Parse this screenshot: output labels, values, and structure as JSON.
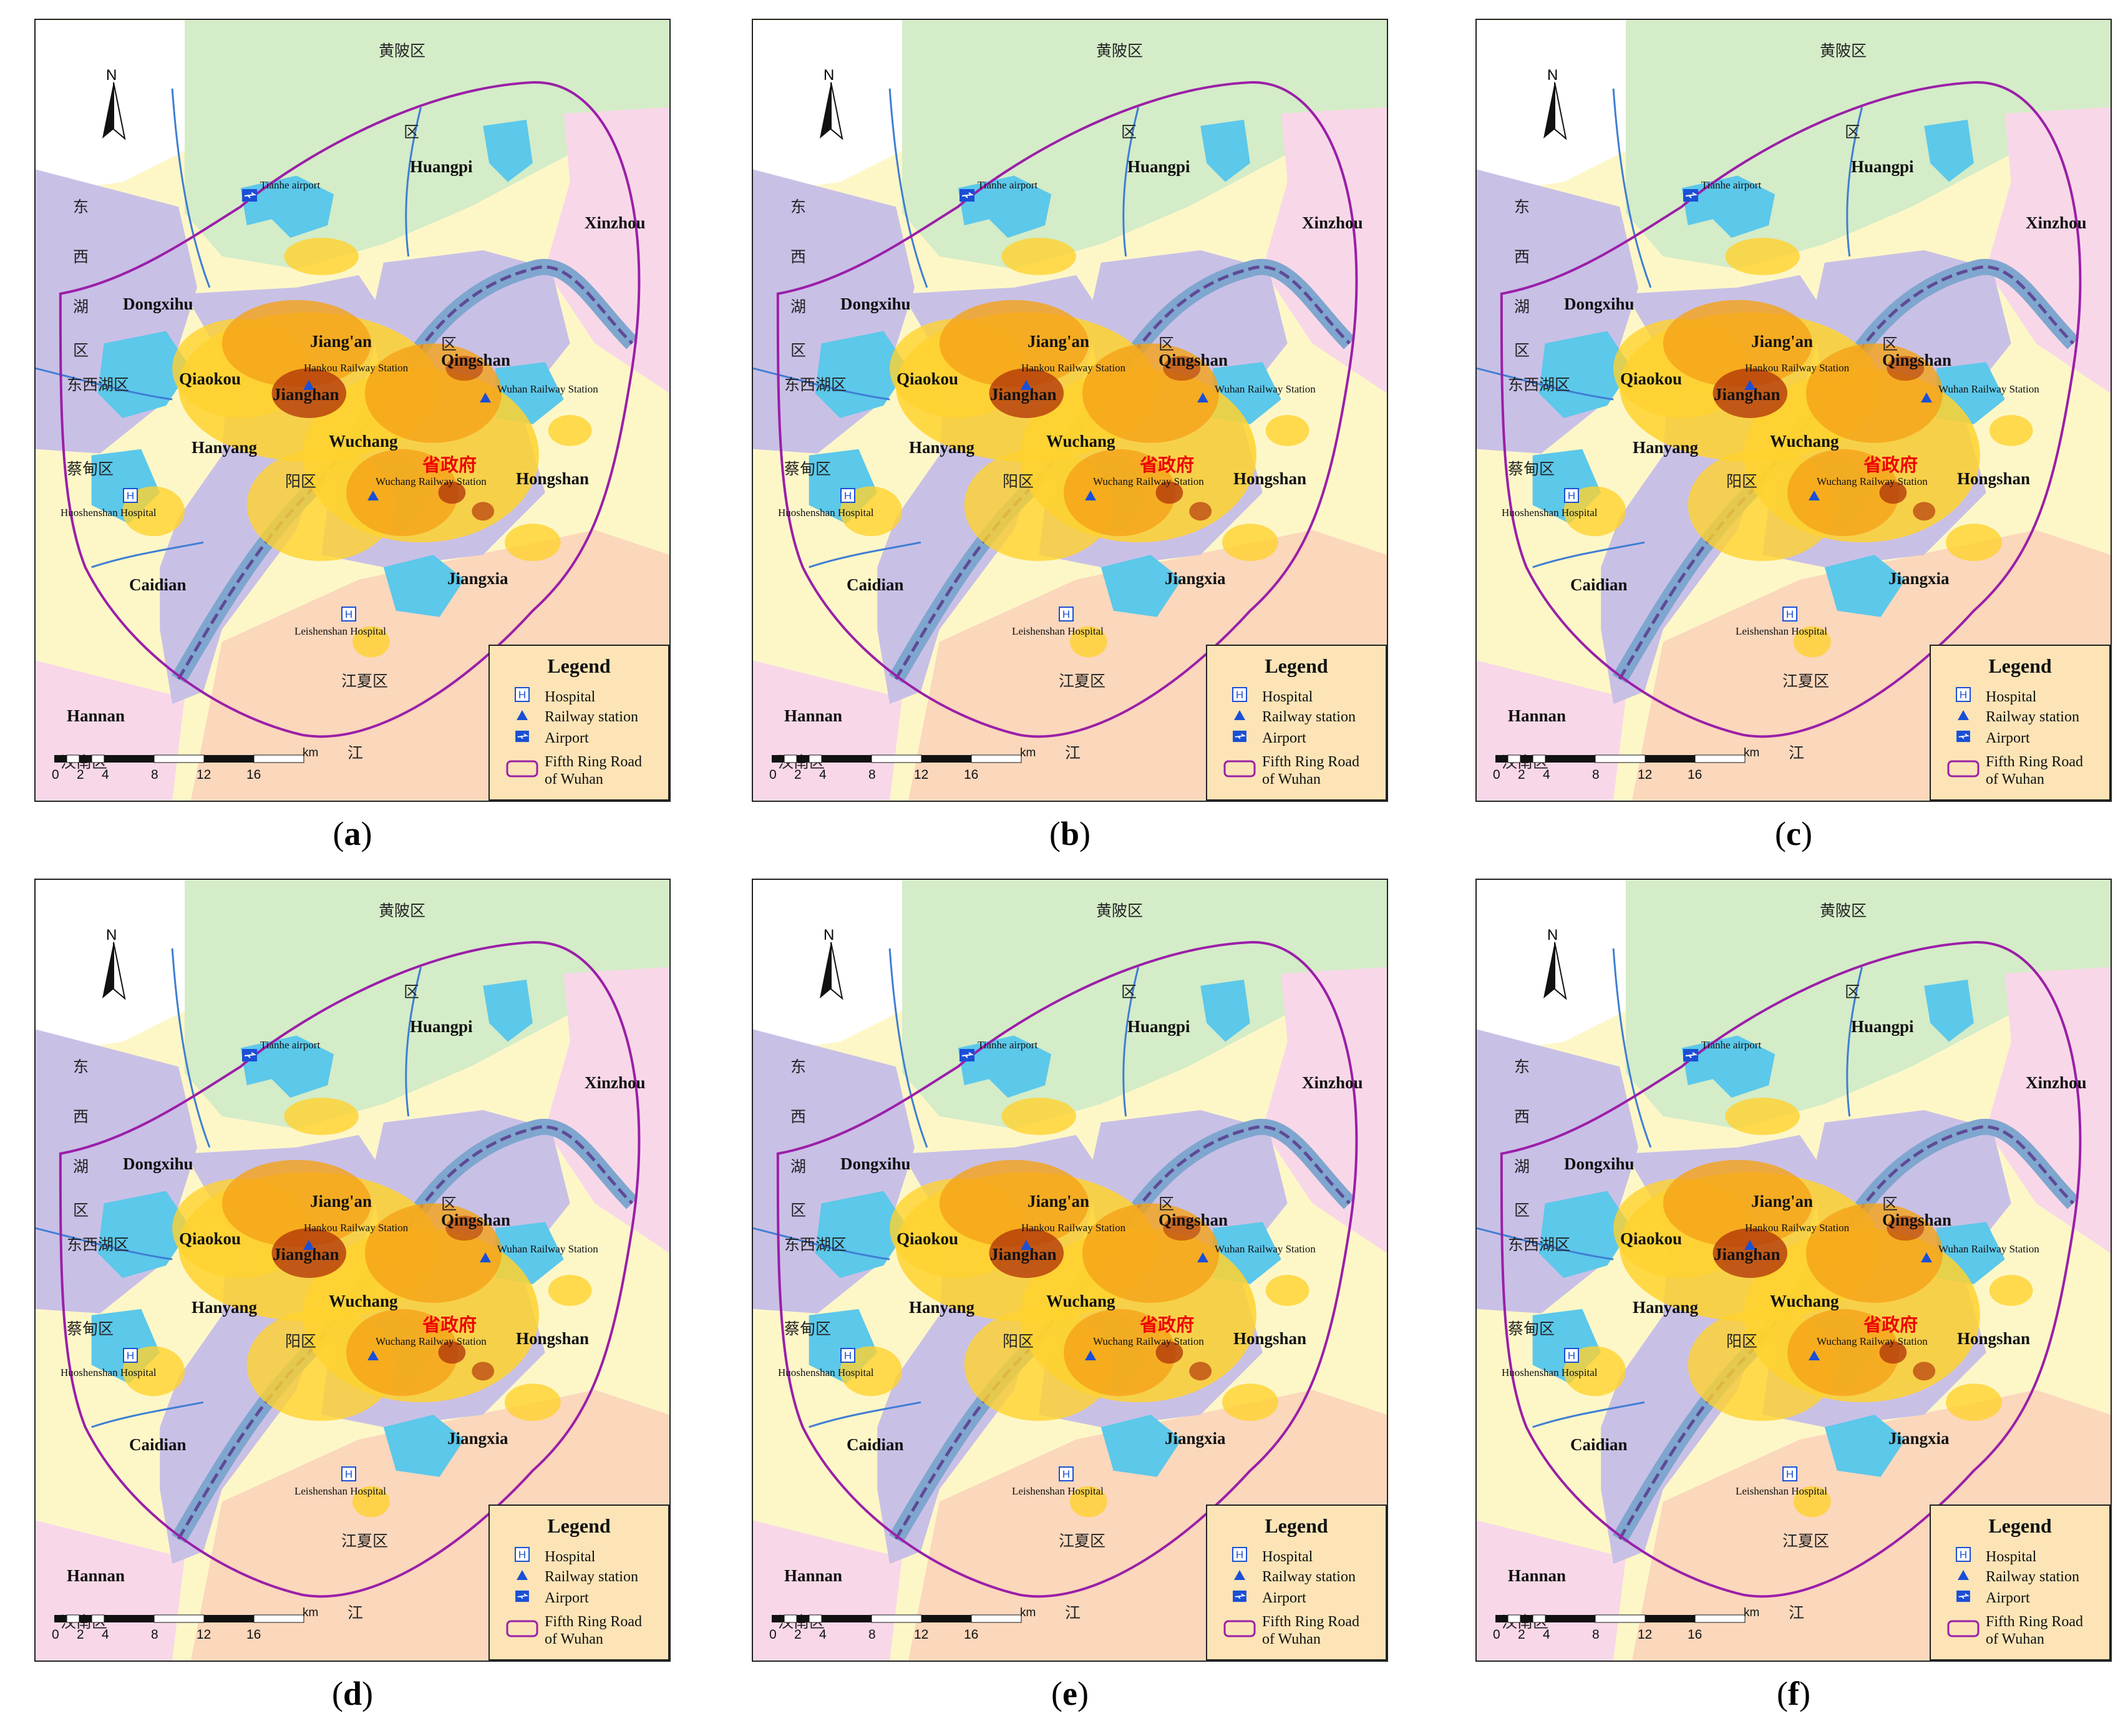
{
  "panels": [
    {
      "label_open": "(",
      "letter": "a",
      "label_close": ")"
    },
    {
      "label_open": "(",
      "letter": "b",
      "label_close": ")"
    },
    {
      "label_open": "(",
      "letter": "c",
      "label_close": ")"
    },
    {
      "label_open": "(",
      "letter": "d",
      "label_close": ")"
    },
    {
      "label_open": "(",
      "letter": "e",
      "label_close": ")"
    },
    {
      "label_open": "(",
      "letter": "f",
      "label_close": ")"
    }
  ],
  "map": {
    "north_label": "N",
    "districts": [
      "Huangpi",
      "Xinzhou",
      "Dongxihu",
      "Jiang'an",
      "Qiaokou",
      "Jianghan",
      "Qingshan",
      "Hanyang",
      "Wuchang",
      "Hongshan",
      "Caidian",
      "Jiangxia",
      "Hannan"
    ],
    "cn_labels": [
      "黄陂区",
      "区",
      "东",
      "西",
      "湖",
      "区",
      "东西湖区",
      "蔡甸区",
      "江夏区",
      "汉南区",
      "江",
      "阳区",
      "区"
    ],
    "cn_red": "省政府",
    "pois": {
      "airport": "Tianhe airport",
      "hankou": "Hankou Railway Station",
      "wuhan_rs": "Wuhan Railway Station",
      "wuchang_rs": "Wuchang Railway Station",
      "huoshenshan": "Huoshenshan Hospital",
      "leishenshan": "Leishenshan Hospital"
    },
    "scale": {
      "unit": "km",
      "ticks": [
        "0",
        "2",
        "4",
        "8",
        "12",
        "16"
      ]
    },
    "legend": {
      "title": "Legend",
      "hospital": "Hospital",
      "railway": "Railway station",
      "airport": "Airport",
      "ring_line1": "Fifth Ring Road",
      "ring_line2": "of Wuhan"
    },
    "colors": {
      "ring_road": "#9b1fa8",
      "water": "#5cc8ea",
      "district_purple": "#c9c0e6",
      "district_green": "#d4ecc8",
      "district_pink": "#f8d8e8",
      "district_peach": "#fbd7bc",
      "district_yellow": "#fdf7c8",
      "density_low": "#ffd22e",
      "density_mid": "#f5a218",
      "density_high": "#b33a0a",
      "marker_blue": "#1a4fd6"
    }
  }
}
